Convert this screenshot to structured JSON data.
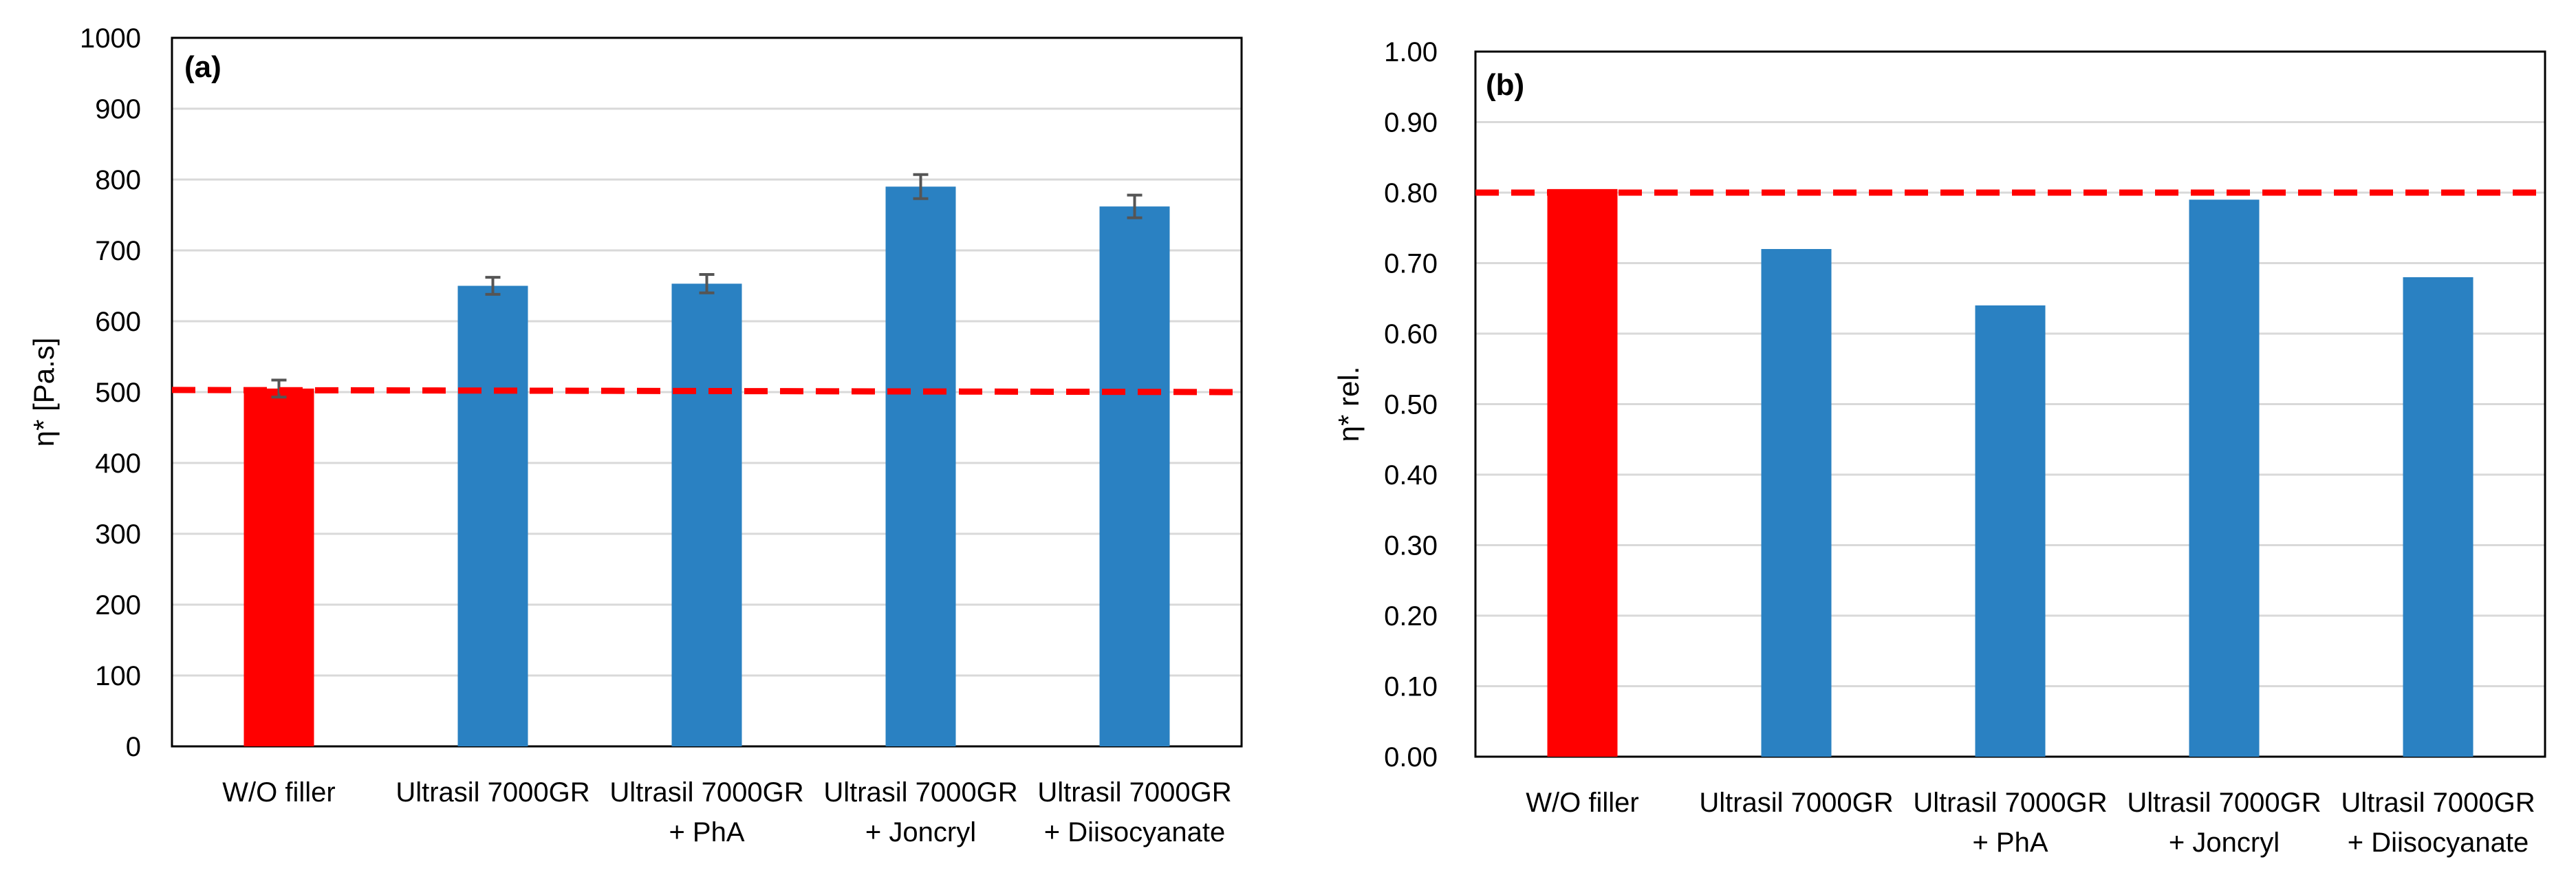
{
  "chart_data": [
    {
      "type": "bar",
      "panel_label": "(a)",
      "title": "",
      "xlabel": "",
      "ylabel": "η* [Pa.s]",
      "categories": [
        [
          "W/O filler"
        ],
        [
          "Ultrasil 7000GR"
        ],
        [
          "Ultrasil 7000GR",
          "+ PhA"
        ],
        [
          "Ultrasil 7000GR",
          "+ Joncryl"
        ],
        [
          "Ultrasil 7000GR",
          "+ Diisocyanate"
        ]
      ],
      "values": [
        505,
        650,
        653,
        790,
        762
      ],
      "errors": [
        12,
        12,
        13,
        17,
        16
      ],
      "bar_colors": [
        "#ff0000",
        "#2a81c2",
        "#2a81c2",
        "#2a81c2",
        "#2a81c2"
      ],
      "ylim": [
        0,
        1000
      ],
      "ystep": 100,
      "ytick_decimals": 0,
      "reference_line": {
        "y_start": 503,
        "y_end": 500,
        "color": "#ff0000",
        "style": "dashed"
      },
      "grid": true,
      "legend": "none"
    },
    {
      "type": "bar",
      "panel_label": "(b)",
      "title": "",
      "xlabel": "",
      "ylabel": "η* rel.",
      "categories": [
        [
          "W/O filler"
        ],
        [
          "Ultrasil 7000GR"
        ],
        [
          "Ultrasil 7000GR",
          "+ PhA"
        ],
        [
          "Ultrasil 7000GR",
          "+ Joncryl"
        ],
        [
          "Ultrasil 7000GR",
          "+ Diisocyanate"
        ]
      ],
      "values": [
        0.805,
        0.72,
        0.64,
        0.79,
        0.68
      ],
      "bar_colors": [
        "#ff0000",
        "#2a81c2",
        "#2a81c2",
        "#2a81c2",
        "#2a81c2"
      ],
      "ylim": [
        0,
        1
      ],
      "ystep": 0.1,
      "ytick_decimals": 2,
      "reference_line": {
        "y_start": 0.8,
        "y_end": 0.8,
        "color": "#ff0000",
        "style": "dashed"
      },
      "grid": true,
      "legend": "none"
    }
  ]
}
